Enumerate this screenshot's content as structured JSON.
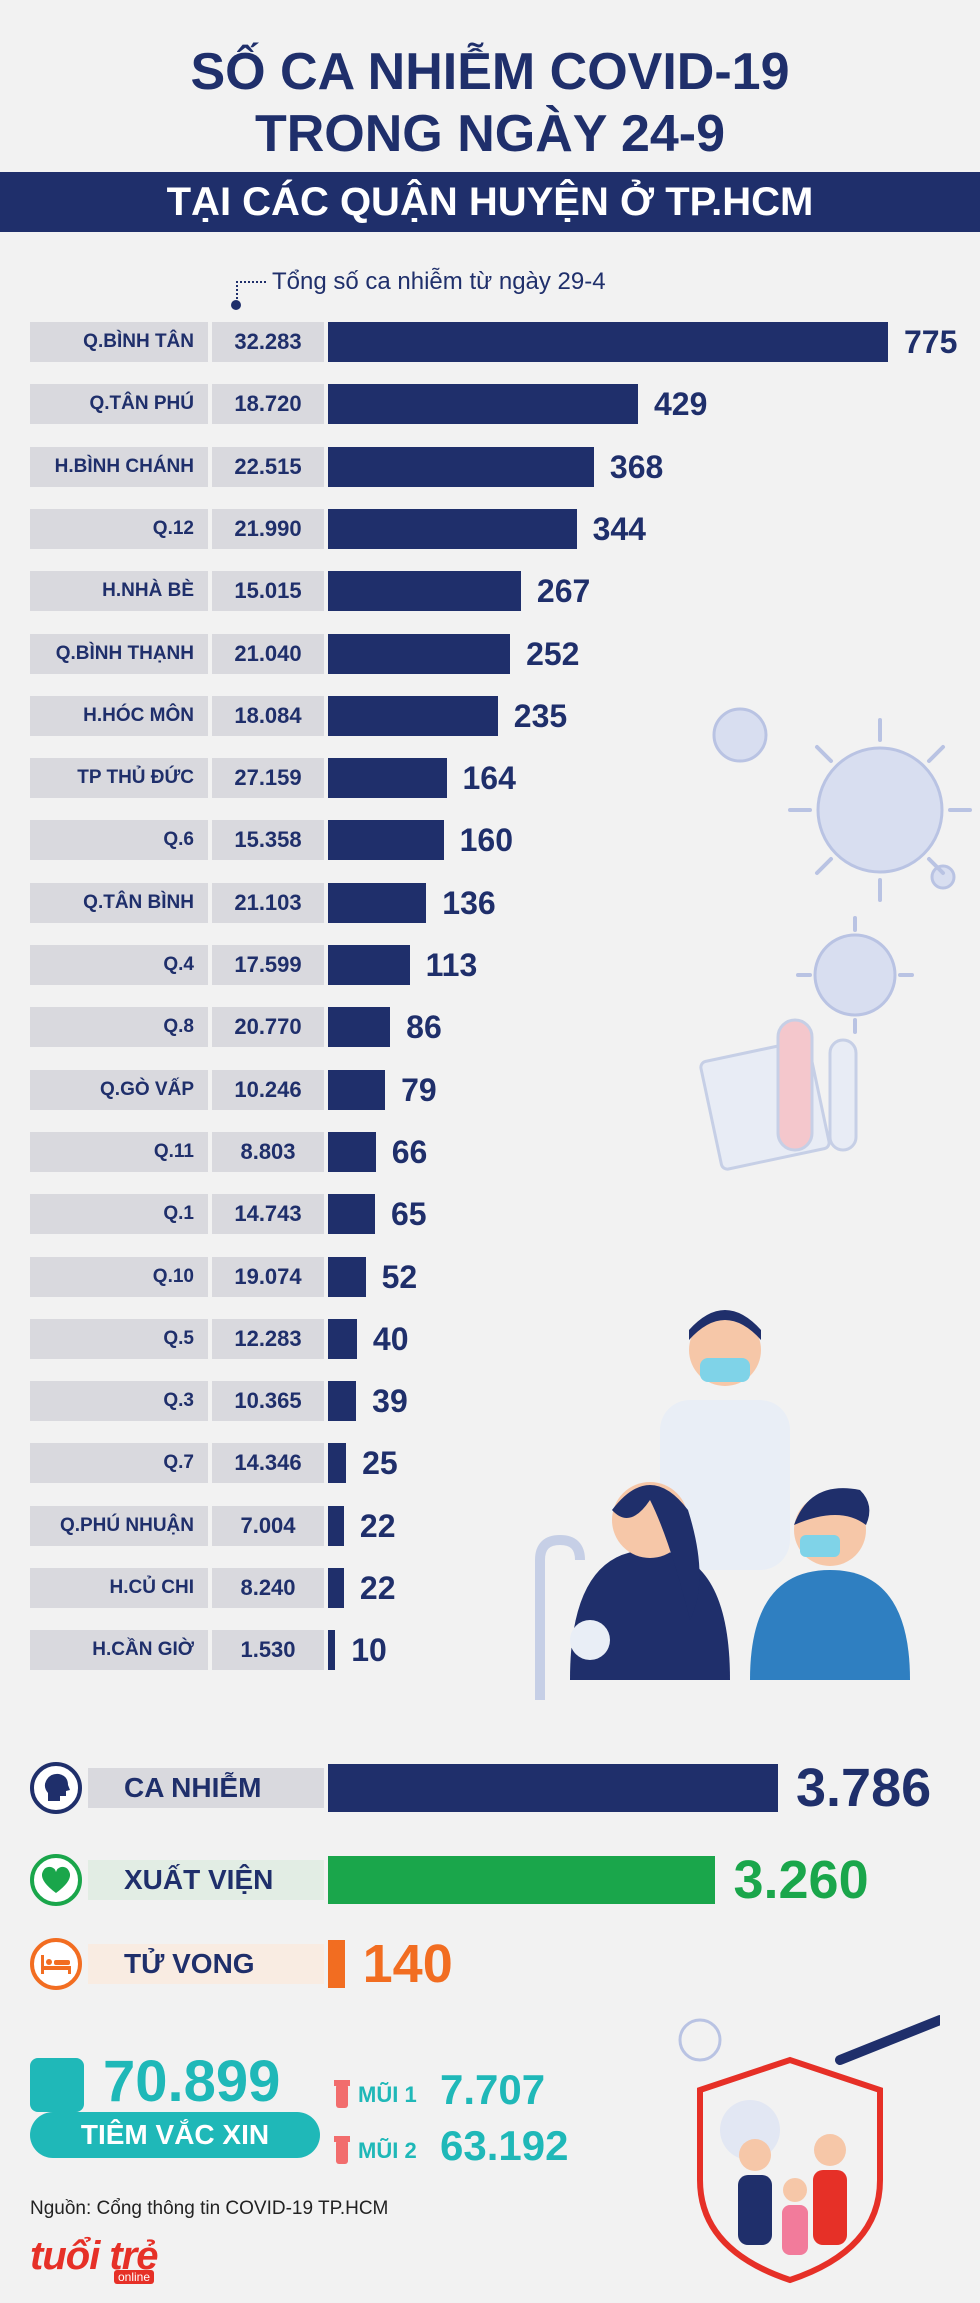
{
  "header": {
    "title_line1": "SỐ CA NHIỄM COVID-19",
    "title_line2": "TRONG NGÀY 24-9",
    "subtitle": "TẠI CÁC QUẬN HUYỆN Ở TP.HCM"
  },
  "chart_data": {
    "type": "bar",
    "orientation": "horizontal",
    "note": "Tổng số ca nhiễm từ ngày 29-4",
    "categories": [
      "Q.BÌNH TÂN",
      "Q.TÂN PHÚ",
      "H.BÌNH CHÁNH",
      "Q.12",
      "H.NHÀ BÈ",
      "Q.BÌNH THẠNH",
      "H.HÓC MÔN",
      "TP THỦ ĐỨC",
      "Q.6",
      "Q.TÂN BÌNH",
      "Q.4",
      "Q.8",
      "Q.GÒ VẤP",
      "Q.11",
      "Q.1",
      "Q.10",
      "Q.5",
      "Q.3",
      "Q.7",
      "Q.PHÚ NHUẬN",
      "H.CỦ CHI",
      "H.CẦN GIỜ"
    ],
    "totals": [
      "32.283",
      "18.720",
      "22.515",
      "21.990",
      "15.015",
      "21.040",
      "18.084",
      "27.159",
      "15.358",
      "21.103",
      "17.599",
      "20.770",
      "10.246",
      "8.803",
      "14.743",
      "19.074",
      "12.283",
      "10.365",
      "14.346",
      "7.004",
      "8.240",
      "1.530"
    ],
    "values": [
      775,
      429,
      368,
      344,
      267,
      252,
      235,
      164,
      160,
      136,
      113,
      86,
      79,
      66,
      65,
      52,
      40,
      39,
      25,
      22,
      22,
      10
    ],
    "max": 775,
    "bar_color": "#1f2f6b"
  },
  "summary": [
    {
      "label": "CA NHIỄM",
      "value": "3.786",
      "number": 3786,
      "color": "#1f2f6b",
      "icon": "head-icon"
    },
    {
      "label": "XUẤT VIỆN",
      "value": "3.260",
      "number": 3260,
      "color": "#1aa64b",
      "icon": "heart-icon"
    },
    {
      "label": "TỬ VONG",
      "value": "140",
      "number": 140,
      "color": "#f26d21",
      "icon": "bed-icon"
    }
  ],
  "vaccine": {
    "total": "70.899",
    "label": "TIÊM VẮC XIN",
    "dose1_label": "MŨI 1",
    "dose1_value": "7.707",
    "dose2_label": "MŨI 2",
    "dose2_value": "63.192"
  },
  "footer": {
    "source": "Nguồn: Cổng thông tin COVID-19 TP.HCM",
    "logo": "tuổi trẻ",
    "logo_sub": "online"
  }
}
